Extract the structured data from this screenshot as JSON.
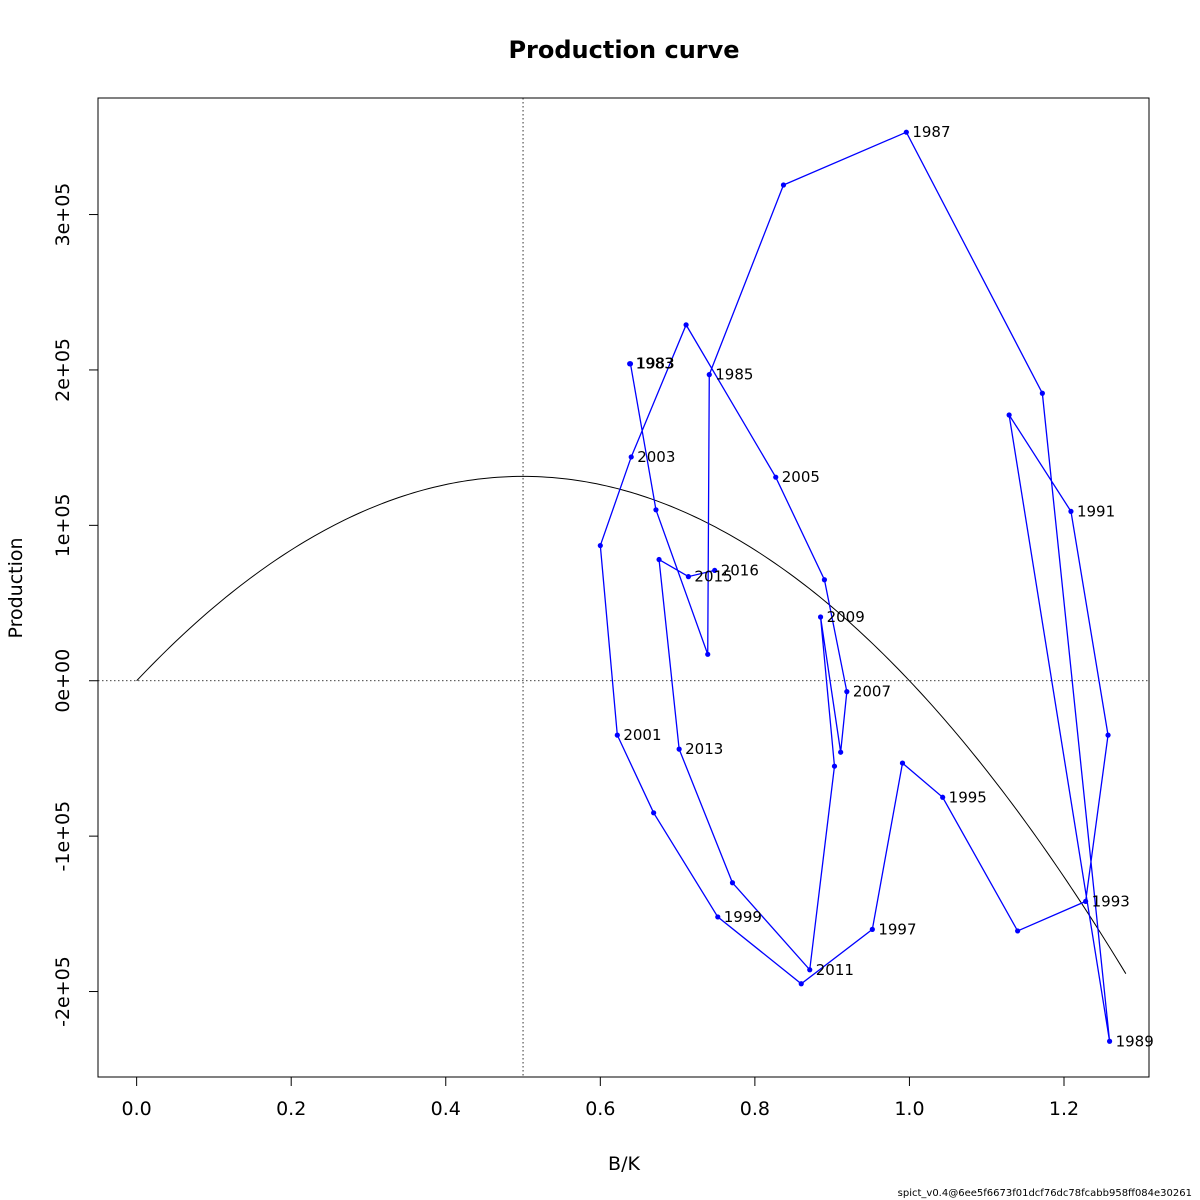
{
  "chart_data": {
    "type": "scatter",
    "title": "Production curve",
    "xlabel": "B/K",
    "ylabel": "Production",
    "xlim": [
      -0.05,
      1.31
    ],
    "ylim": [
      -255000,
      375000
    ],
    "x_ticks": [
      0.0,
      0.2,
      0.4,
      0.6,
      0.8,
      1.0,
      1.2
    ],
    "x_tick_labels": [
      "0.0",
      "0.2",
      "0.4",
      "0.6",
      "0.8",
      "1.0",
      "1.2"
    ],
    "y_ticks": [
      -200000,
      -100000,
      0,
      100000,
      200000,
      300000
    ],
    "y_tick_labels": [
      "-2e+05",
      "-1e+05",
      "0e+00",
      "1e+05",
      "2e+05",
      "3e+05"
    ],
    "reference_lines": {
      "vertical_x": 0.5,
      "horizontal_y": 0,
      "style": "dotted"
    },
    "model_curve": {
      "kind": "parabola",
      "x_start": 0.0,
      "x_end": 1.28,
      "peak_x": 0.5,
      "peak_y": 131500,
      "color": "#000000"
    },
    "trajectory": {
      "color": "#0000ff",
      "points": [
        {
          "x": 0.638,
          "y": 204000,
          "label": "1983"
        },
        {
          "x": 0.639,
          "y": 204000,
          "label": "1983"
        },
        {
          "x": 0.672,
          "y": 110000,
          "label": ""
        },
        {
          "x": 0.739,
          "y": 17000,
          "label": ""
        },
        {
          "x": 0.741,
          "y": 197000,
          "label": "1985"
        },
        {
          "x": 0.837,
          "y": 319000,
          "label": ""
        },
        {
          "x": 0.996,
          "y": 353000,
          "label": "1987"
        },
        {
          "x": 1.172,
          "y": 185000,
          "label": ""
        },
        {
          "x": 1.259,
          "y": -232000,
          "label": "1989"
        },
        {
          "x": 1.129,
          "y": 171000,
          "label": ""
        },
        {
          "x": 1.209,
          "y": 109000,
          "label": "1991"
        },
        {
          "x": 1.257,
          "y": -35000,
          "label": ""
        },
        {
          "x": 1.228,
          "y": -142000,
          "label": "1993"
        },
        {
          "x": 1.14,
          "y": -161000,
          "label": ""
        },
        {
          "x": 1.043,
          "y": -75000,
          "label": "1995"
        },
        {
          "x": 0.991,
          "y": -53000,
          "label": ""
        },
        {
          "x": 0.952,
          "y": -160000,
          "label": "1997"
        },
        {
          "x": 0.86,
          "y": -195000,
          "label": ""
        },
        {
          "x": 0.752,
          "y": -152000,
          "label": "1999"
        },
        {
          "x": 0.669,
          "y": -85000,
          "label": ""
        },
        {
          "x": 0.622,
          "y": -35000,
          "label": "2001"
        },
        {
          "x": 0.6,
          "y": 87000,
          "label": ""
        },
        {
          "x": 0.64,
          "y": 144000,
          "label": "2003"
        },
        {
          "x": 0.711,
          "y": 229000,
          "label": ""
        },
        {
          "x": 0.827,
          "y": 131000,
          "label": "2005"
        },
        {
          "x": 0.89,
          "y": 65000,
          "label": ""
        },
        {
          "x": 0.919,
          "y": -7000,
          "label": "2007"
        },
        {
          "x": 0.911,
          "y": -46000,
          "label": ""
        },
        {
          "x": 0.885,
          "y": 41000,
          "label": "2009"
        },
        {
          "x": 0.903,
          "y": -55000,
          "label": ""
        },
        {
          "x": 0.871,
          "y": -186000,
          "label": "2011"
        },
        {
          "x": 0.771,
          "y": -130000,
          "label": ""
        },
        {
          "x": 0.702,
          "y": -44000,
          "label": "2013"
        },
        {
          "x": 0.676,
          "y": 78000,
          "label": ""
        },
        {
          "x": 0.714,
          "y": 67000,
          "label": "2015"
        },
        {
          "x": 0.748,
          "y": 71000,
          "label": "2016"
        }
      ]
    }
  },
  "footer_text": "spict_v0.4@6ee5f6673f01dcf76dc78fcabb958ff084e30261"
}
